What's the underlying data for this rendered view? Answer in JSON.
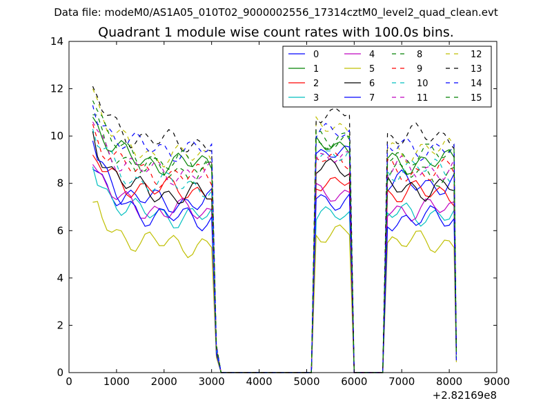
{
  "figure": {
    "suptitle": "Data file: modeM0/AS1A05_010T02_9000002556_17314cztM0_level2_quad_clean.evt",
    "title": "Quadrant 1 module wise count rates with 100.0s bins."
  },
  "chart_data": {
    "type": "line",
    "title": "Quadrant 1 module wise count rates with 100.0s bins.",
    "xlabel": "",
    "ylabel": "",
    "x_offset_label": "+2.82169e8",
    "xlim": [
      0,
      9000
    ],
    "ylim": [
      0,
      14
    ],
    "xticks": [
      0,
      1000,
      2000,
      3000,
      4000,
      5000,
      6000,
      7000,
      8000,
      9000
    ],
    "yticks": [
      0,
      2,
      4,
      6,
      8,
      10,
      12,
      14
    ],
    "xtick_labels": [
      "0",
      "1000",
      "2000",
      "3000",
      "4000",
      "5000",
      "6000",
      "7000",
      "8000",
      "9000"
    ],
    "ytick_labels": [
      "0",
      "2",
      "4",
      "6",
      "8",
      "10",
      "12",
      "14"
    ],
    "grid": false,
    "legend_position": "top-right",
    "legend_columns": 4,
    "segments": [
      {
        "start": 500,
        "end": 3000,
        "step": 100,
        "fall": [
          3100,
          3200
        ]
      },
      {
        "start": 5200,
        "end": 5900,
        "step": 100,
        "rise": [
          5100
        ],
        "fall": [
          6000
        ]
      },
      {
        "start": 6700,
        "end": 8100,
        "step": 100,
        "rise": [
          6600
        ],
        "fall": [
          8150
        ]
      }
    ],
    "x_data_span": [
      500,
      8150
    ],
    "series": [
      {
        "name": "0",
        "color": "#0000ff",
        "dashed": false,
        "levels": [
          8.6,
          7.2,
          9.2,
          8.0
        ]
      },
      {
        "name": "1",
        "color": "#008000",
        "dashed": false,
        "levels": [
          10.8,
          8.8,
          9.6,
          8.9
        ]
      },
      {
        "name": "2",
        "color": "#ff0000",
        "dashed": false,
        "levels": [
          9.2,
          7.7,
          8.1,
          7.6
        ]
      },
      {
        "name": "3",
        "color": "#00bfbf",
        "dashed": false,
        "levels": [
          8.7,
          6.6,
          6.6,
          6.7
        ]
      },
      {
        "name": "4",
        "color": "#bf00bf",
        "dashed": false,
        "levels": [
          8.8,
          6.8,
          7.6,
          6.9
        ]
      },
      {
        "name": "5",
        "color": "#bfbf00",
        "dashed": false,
        "levels": [
          7.2,
          5.4,
          5.9,
          5.5
        ]
      },
      {
        "name": "6",
        "color": "#000000",
        "dashed": false,
        "levels": [
          10.2,
          7.5,
          8.6,
          7.8
        ]
      },
      {
        "name": "7",
        "color": "#0000ff",
        "dashed": false,
        "levels": [
          9.8,
          6.5,
          7.3,
          6.5
        ]
      },
      {
        "name": "8",
        "color": "#008000",
        "dashed": true,
        "levels": [
          10.9,
          8.5,
          9.7,
          8.4
        ]
      },
      {
        "name": "9",
        "color": "#ff0000",
        "dashed": true,
        "levels": [
          10.5,
          8.3,
          9.0,
          8.5
        ]
      },
      {
        "name": "10",
        "color": "#00bfbf",
        "dashed": true,
        "levels": [
          10.3,
          7.9,
          9.3,
          8.6
        ]
      },
      {
        "name": "11",
        "color": "#bf00bf",
        "dashed": true,
        "levels": [
          10.6,
          8.4,
          9.0,
          8.6
        ]
      },
      {
        "name": "12",
        "color": "#bfbf00",
        "dashed": true,
        "levels": [
          12.0,
          9.1,
          10.4,
          9.4
        ]
      },
      {
        "name": "13",
        "color": "#000000",
        "dashed": true,
        "levels": [
          12.1,
          9.7,
          11.0,
          10.0
        ]
      },
      {
        "name": "14",
        "color": "#0000ff",
        "dashed": true,
        "levels": [
          11.3,
          9.4,
          10.1,
          9.5
        ]
      },
      {
        "name": "15",
        "color": "#008000",
        "dashed": true,
        "levels": [
          11.5,
          8.8,
          9.9,
          9.2
        ]
      }
    ]
  }
}
